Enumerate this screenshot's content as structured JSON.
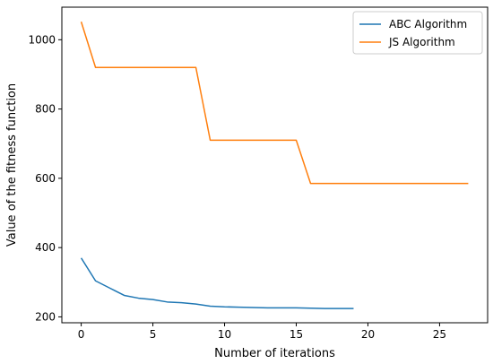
{
  "chart_data": {
    "type": "line",
    "title": "",
    "xlabel": "Number of iterations",
    "ylabel": "Value of the fitness function",
    "xlim": [
      -1.35,
      28.35
    ],
    "ylim": [
      183,
      1094
    ],
    "xticks": [
      0,
      5,
      10,
      15,
      20,
      25
    ],
    "yticks": [
      200,
      400,
      600,
      800,
      1000
    ],
    "grid": false,
    "legend_position": "top-right",
    "series": [
      {
        "name": "ABC Algorithm",
        "color": "#1f77b4",
        "x": [
          0,
          1,
          2,
          3,
          4,
          5,
          6,
          7,
          8,
          9,
          10,
          11,
          12,
          13,
          14,
          15,
          16,
          17,
          18,
          19
        ],
        "y": [
          370,
          304,
          283,
          262,
          254,
          250,
          243,
          241,
          237,
          231,
          229,
          228,
          227,
          226,
          226,
          226,
          225,
          224,
          224,
          224
        ]
      },
      {
        "name": "JS Algorithm",
        "color": "#ff7f0e",
        "x": [
          0,
          1,
          2,
          3,
          4,
          5,
          6,
          7,
          8,
          9,
          10,
          11,
          12,
          13,
          14,
          15,
          16,
          17,
          18,
          19,
          20,
          21,
          22,
          23,
          24,
          25,
          26,
          27
        ],
        "y": [
          1052,
          920,
          920,
          920,
          920,
          920,
          920,
          920,
          920,
          710,
          710,
          710,
          710,
          710,
          710,
          710,
          585,
          585,
          585,
          585,
          585,
          585,
          585,
          585,
          585,
          585,
          585,
          585
        ]
      }
    ]
  }
}
